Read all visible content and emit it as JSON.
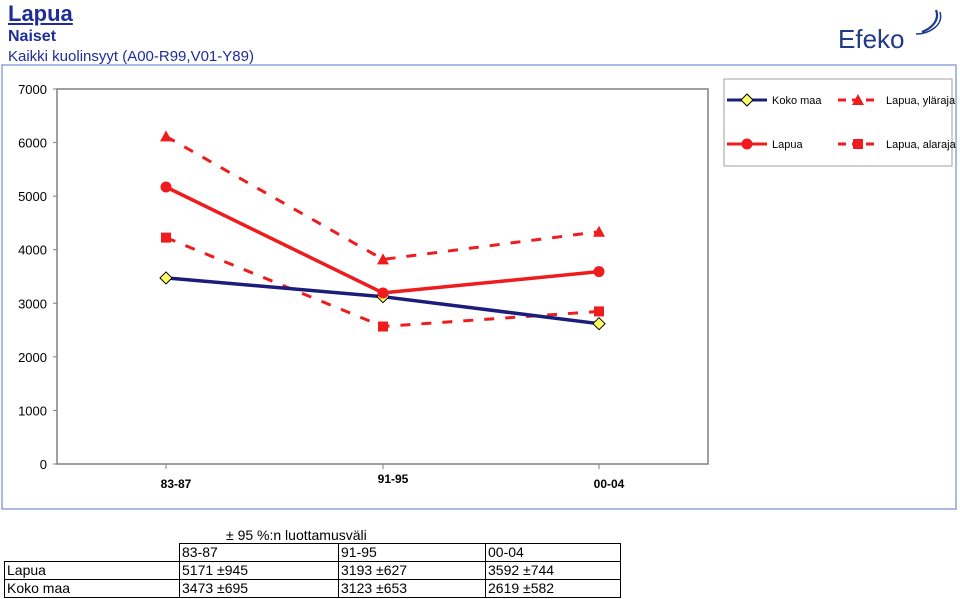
{
  "header": {
    "title": "Lapua",
    "subtitle": "Naiset",
    "description": "Kaikki kuolinsyyt (A00-R99,V01-Y89)",
    "logo_text": "Efeko"
  },
  "colors": {
    "koko_maa": "#1c1c7a",
    "lapua": "#ee1c1c",
    "diamond_fill": "#ffff66",
    "plot_border": "#808080",
    "outer_border": "#8ea3d6"
  },
  "chart_data": {
    "type": "line",
    "categories": [
      "83-87",
      "91-95",
      "00-04"
    ],
    "ylim": [
      0,
      7000
    ],
    "yticks": [
      0,
      1000,
      2000,
      3000,
      4000,
      5000,
      6000,
      7000
    ],
    "grid": false,
    "legend_position": "top-right",
    "series": [
      {
        "name": "Koko maa",
        "values": [
          3473,
          3123,
          2619
        ],
        "color": "#1c1c7a",
        "marker": "diamond",
        "style": "solid"
      },
      {
        "name": "Lapua",
        "values": [
          5171,
          3193,
          3592
        ],
        "color": "#ee1c1c",
        "marker": "circle",
        "style": "solid"
      },
      {
        "name": "Lapua, yläraja",
        "values": [
          6116,
          3820,
          4336
        ],
        "color": "#ee1c1c",
        "marker": "triangle",
        "style": "dashed"
      },
      {
        "name": "Lapua, alaraja",
        "values": [
          4226,
          2566,
          2848
        ],
        "color": "#ee1c1c",
        "marker": "square",
        "style": "dashed"
      }
    ]
  },
  "table": {
    "caption": "± 95 %:n luottamusväli",
    "header": [
      "83-87",
      "91-95",
      "00-04"
    ],
    "rows": [
      {
        "label": "Lapua",
        "cells": [
          "5171 ±945",
          "3193 ±627",
          "3592 ±744"
        ]
      },
      {
        "label": "Koko maa",
        "cells": [
          "3473 ±695",
          "3123 ±653",
          "2619 ±582"
        ]
      }
    ]
  }
}
